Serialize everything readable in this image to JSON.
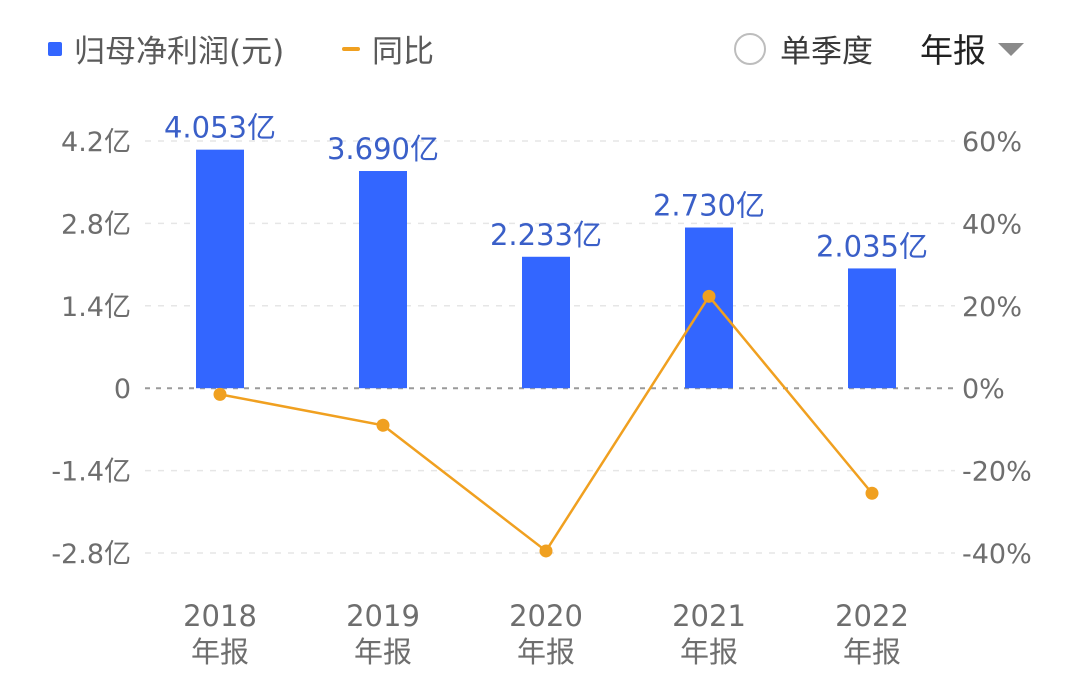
{
  "legend": {
    "bar_label": "归母净利润(元)",
    "line_label": "同比"
  },
  "toggle": {
    "single_quarter_label": "单季度"
  },
  "period_select": {
    "value": "年报"
  },
  "colors": {
    "bar": "#3366ff",
    "line": "#f0a020",
    "bar_label": "#3a5fc8",
    "axis_text": "#6e6e6e",
    "grid": "#e6e6e6",
    "zero_line": "#9a9a9a"
  },
  "chart_data": {
    "type": "bar",
    "categories": [
      "2018",
      "2019",
      "2020",
      "2021",
      "2022"
    ],
    "category_sublabel": "年报",
    "series": [
      {
        "name": "归母净利润(元)",
        "type": "bar",
        "axis": "left",
        "values": [
          4.053,
          3.69,
          2.233,
          2.73,
          2.035
        ],
        "value_labels": [
          "4.053亿",
          "3.690亿",
          "2.233亿",
          "2.730亿",
          "2.035亿"
        ]
      },
      {
        "name": "同比",
        "type": "line",
        "axis": "right",
        "values": [
          -1.5,
          -9.0,
          -39.5,
          22.3,
          -25.5
        ]
      }
    ],
    "y_left": {
      "range": [
        -2.8,
        4.2
      ],
      "ticks": [
        4.2,
        2.8,
        1.4,
        0,
        -1.4,
        -2.8
      ],
      "tick_labels": [
        "4.2亿",
        "2.8亿",
        "1.4亿",
        "0",
        "-1.4亿",
        "-2.8亿"
      ]
    },
    "y_right": {
      "range": [
        -40,
        60
      ],
      "ticks": [
        60,
        40,
        20,
        0,
        -20,
        -40
      ],
      "tick_labels": [
        "60%",
        "40%",
        "20%",
        "0%",
        "-20%",
        "-40%"
      ]
    },
    "grid": true,
    "legend_position": "top-left"
  }
}
